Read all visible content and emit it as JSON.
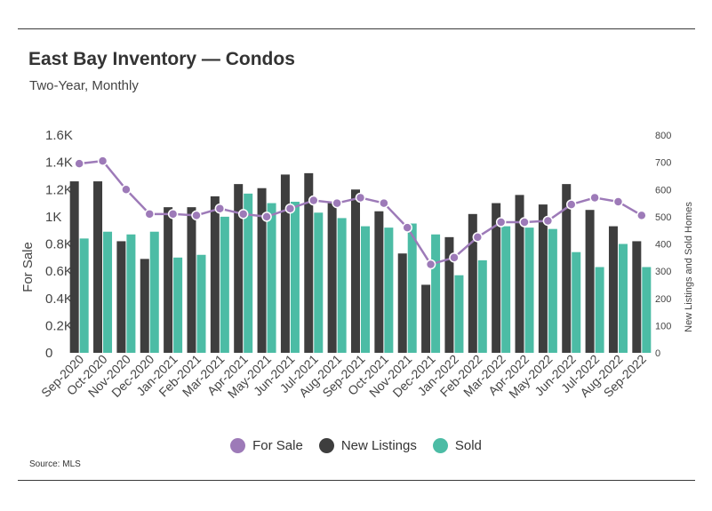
{
  "title": "East Bay Inventory — Condos",
  "subtitle": "Two-Year, Monthly",
  "source": "Source:  MLS",
  "colors": {
    "for_sale": "#9d7ab8",
    "new_listings": "#3e3e3e",
    "sold": "#4cbca5"
  },
  "chart_data": {
    "type": "bar",
    "title": "East Bay Inventory — Condos",
    "subtitle": "Two-Year, Monthly",
    "categories": [
      "Sep-2020",
      "Oct-2020",
      "Nov-2020",
      "Dec-2020",
      "Jan-2021",
      "Feb-2021",
      "Mar-2021",
      "Apr-2021",
      "May-2021",
      "Jun-2021",
      "Jul-2021",
      "Aug-2021",
      "Sep-2021",
      "Oct-2021",
      "Nov-2021",
      "Dec-2021",
      "Jan-2022",
      "Feb-2022",
      "Mar-2022",
      "Apr-2022",
      "May-2022",
      "Jun-2022",
      "Jul-2022",
      "Aug-2022",
      "Sep-2022"
    ],
    "series": [
      {
        "name": "For Sale",
        "type": "line",
        "axis": "left",
        "values": [
          1390,
          1410,
          1200,
          1020,
          1020,
          1010,
          1060,
          1020,
          1000,
          1060,
          1120,
          1100,
          1140,
          1100,
          920,
          650,
          700,
          850,
          960,
          960,
          970,
          1090,
          1140,
          1110,
          1010
        ]
      },
      {
        "name": "New Listings",
        "type": "bar",
        "axis": "right",
        "values": [
          630,
          630,
          410,
          345,
          535,
          535,
          575,
          620,
          605,
          655,
          660,
          550,
          600,
          520,
          365,
          250,
          425,
          510,
          550,
          580,
          545,
          620,
          525,
          465,
          410
        ]
      },
      {
        "name": "Sold",
        "type": "bar",
        "axis": "right",
        "values": [
          420,
          445,
          435,
          445,
          350,
          360,
          500,
          585,
          550,
          555,
          515,
          495,
          465,
          460,
          475,
          435,
          285,
          340,
          465,
          460,
          455,
          370,
          315,
          400,
          315
        ]
      }
    ],
    "ylabel": "For Sale",
    "ylim": [
      0,
      1600
    ],
    "yticks": [
      "0",
      "0.2K",
      "0.4K",
      "0.6K",
      "0.8K",
      "1K",
      "1.2K",
      "1.4K",
      "1.6K"
    ],
    "y2label": "New Listings and Sold Homes",
    "y2lim": [
      0,
      800
    ],
    "y2ticks": [
      "0",
      "100",
      "200",
      "300",
      "400",
      "500",
      "600",
      "700",
      "800"
    ],
    "legend": [
      "For Sale",
      "New Listings",
      "Sold"
    ],
    "legend_position": "bottom",
    "grid": false
  }
}
